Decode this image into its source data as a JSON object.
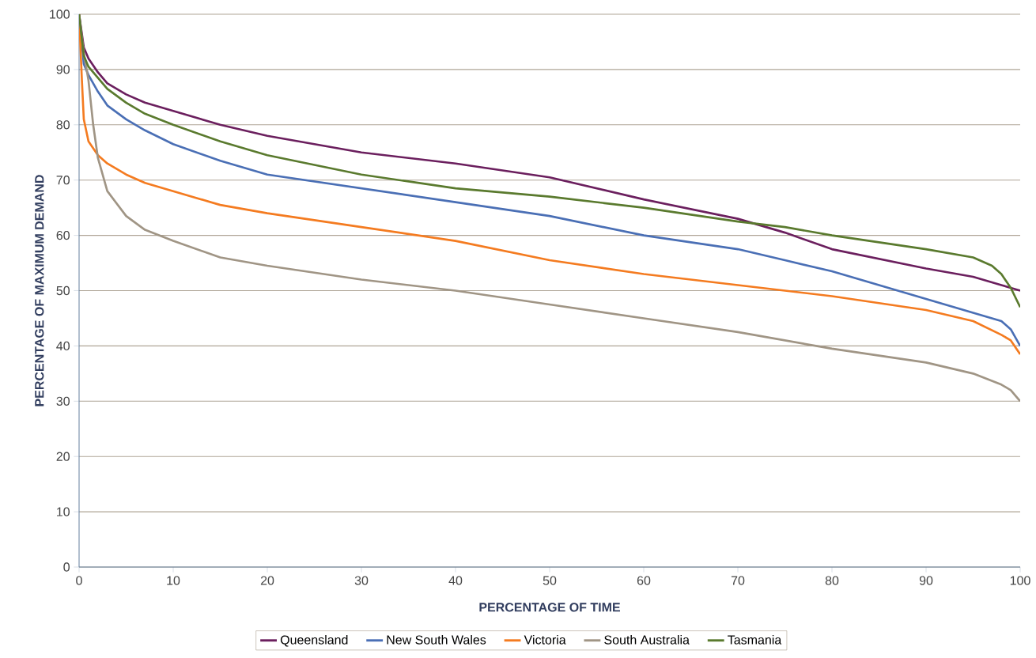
{
  "chart_data": {
    "type": "line",
    "xlabel": "PERCENTAGE OF TIME",
    "ylabel": "PERCENTAGE OF MAXIMUM DEMAND",
    "xlim": [
      0,
      100
    ],
    "ylim": [
      0,
      100
    ],
    "xticks": [
      0,
      10,
      20,
      30,
      40,
      50,
      60,
      70,
      80,
      90,
      100
    ],
    "yticks": [
      0,
      10,
      20,
      30,
      40,
      50,
      60,
      70,
      80,
      90,
      100
    ],
    "grid": "y",
    "legend": "bottom",
    "marker": "none",
    "line_style": "solid",
    "series": [
      {
        "name": "Queensland",
        "color": "#6b1f5e",
        "x": [
          0,
          0.5,
          1,
          2,
          3,
          5,
          7,
          10,
          15,
          20,
          30,
          40,
          50,
          60,
          70,
          75,
          80,
          90,
          95,
          98,
          100
        ],
        "values": [
          100,
          94,
          92,
          89.5,
          87.5,
          85.5,
          84,
          82.5,
          80,
          78,
          75,
          73,
          70.5,
          66.5,
          63,
          60.5,
          57.5,
          54,
          52.5,
          51,
          50
        ]
      },
      {
        "name": "New South Wales",
        "color": "#4a6fb5",
        "x": [
          0,
          0.5,
          1,
          2,
          3,
          5,
          7,
          10,
          15,
          20,
          30,
          40,
          50,
          60,
          70,
          75,
          80,
          90,
          95,
          98,
          99,
          100
        ],
        "values": [
          100,
          91,
          89,
          86,
          83.5,
          81,
          79,
          76.5,
          73.5,
          71,
          68.5,
          66,
          63.5,
          60,
          57.5,
          55.5,
          53.5,
          48.5,
          46,
          44.5,
          43,
          40
        ]
      },
      {
        "name": "Victoria",
        "color": "#f47b20",
        "x": [
          0,
          0.3,
          0.5,
          1,
          2,
          3,
          5,
          7,
          10,
          15,
          20,
          30,
          40,
          50,
          60,
          70,
          75,
          80,
          90,
          95,
          98,
          99,
          100
        ],
        "values": [
          100,
          88,
          81,
          77,
          74.5,
          73,
          71,
          69.5,
          68,
          65.5,
          64,
          61.5,
          59,
          55.5,
          53,
          51,
          50,
          49,
          46.5,
          44.5,
          42,
          41,
          38.5
        ]
      },
      {
        "name": "South Australia",
        "color": "#a09585",
        "x": [
          0,
          0.5,
          1,
          1.5,
          2,
          3,
          5,
          7,
          10,
          15,
          20,
          30,
          40,
          50,
          60,
          70,
          80,
          90,
          95,
          98,
          99,
          100
        ],
        "values": [
          100,
          93,
          88,
          80,
          74,
          68,
          63.5,
          61,
          59,
          56,
          54.5,
          52,
          50,
          47.5,
          45,
          42.5,
          39.5,
          37,
          35,
          33,
          32,
          30
        ]
      },
      {
        "name": "Tasmania",
        "color": "#5a7a2e",
        "x": [
          0,
          0.5,
          1,
          2,
          3,
          5,
          7,
          10,
          15,
          20,
          30,
          40,
          50,
          60,
          70,
          75,
          80,
          90,
          95,
          97,
          98,
          99,
          100
        ],
        "values": [
          100,
          92.5,
          90.5,
          88.5,
          86.5,
          84,
          82,
          80,
          77,
          74.5,
          71,
          68.5,
          67,
          65,
          62.5,
          61.5,
          60,
          57.5,
          56,
          54.5,
          53,
          50.5,
          47
        ]
      }
    ]
  }
}
